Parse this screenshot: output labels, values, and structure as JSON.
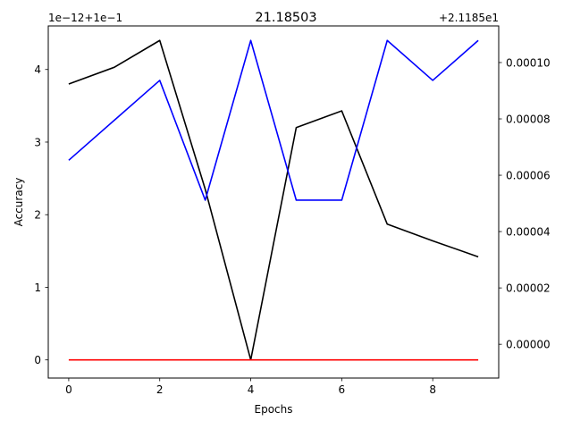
{
  "chart_data": {
    "type": "line",
    "title": "21.18503",
    "xlabel": "Epochs",
    "ylabel": "Accuracy",
    "x": [
      0,
      1,
      2,
      3,
      4,
      5,
      6,
      7,
      8,
      9
    ],
    "xlim": [
      -0.45,
      9.45
    ],
    "x_ticks": [
      0,
      2,
      4,
      6,
      8
    ],
    "left_axis": {
      "offset_text": "1e−12+1e−1",
      "ylim": [
        -0.25,
        4.6
      ],
      "ticks": [
        0,
        1,
        2,
        3,
        4
      ]
    },
    "right_axis": {
      "offset_text": "+2.1185e1",
      "ylim": [
        -1.2e-05,
        0.000113
      ],
      "ticks": [
        0.0,
        2e-05,
        4e-05,
        6e-05,
        8e-05,
        0.0001
      ],
      "tick_labels": [
        "0.00000",
        "0.00002",
        "0.00004",
        "0.00006",
        "0.00008",
        "0.00010"
      ]
    },
    "series": [
      {
        "name": "black",
        "color": "#000000",
        "axis": "left",
        "values": [
          3.8,
          4.03,
          4.4,
          2.35,
          0.0,
          3.2,
          3.43,
          1.87,
          1.64,
          1.42
        ]
      },
      {
        "name": "blue",
        "color": "#0000ff",
        "axis": "left",
        "values": [
          2.75,
          3.3,
          3.85,
          2.2,
          4.4,
          2.2,
          2.2,
          4.4,
          3.85,
          4.4
        ]
      },
      {
        "name": "red",
        "color": "#ff0000",
        "axis": "left",
        "values": [
          0,
          0,
          0,
          0,
          0,
          0,
          0,
          0,
          0,
          0
        ]
      }
    ]
  }
}
